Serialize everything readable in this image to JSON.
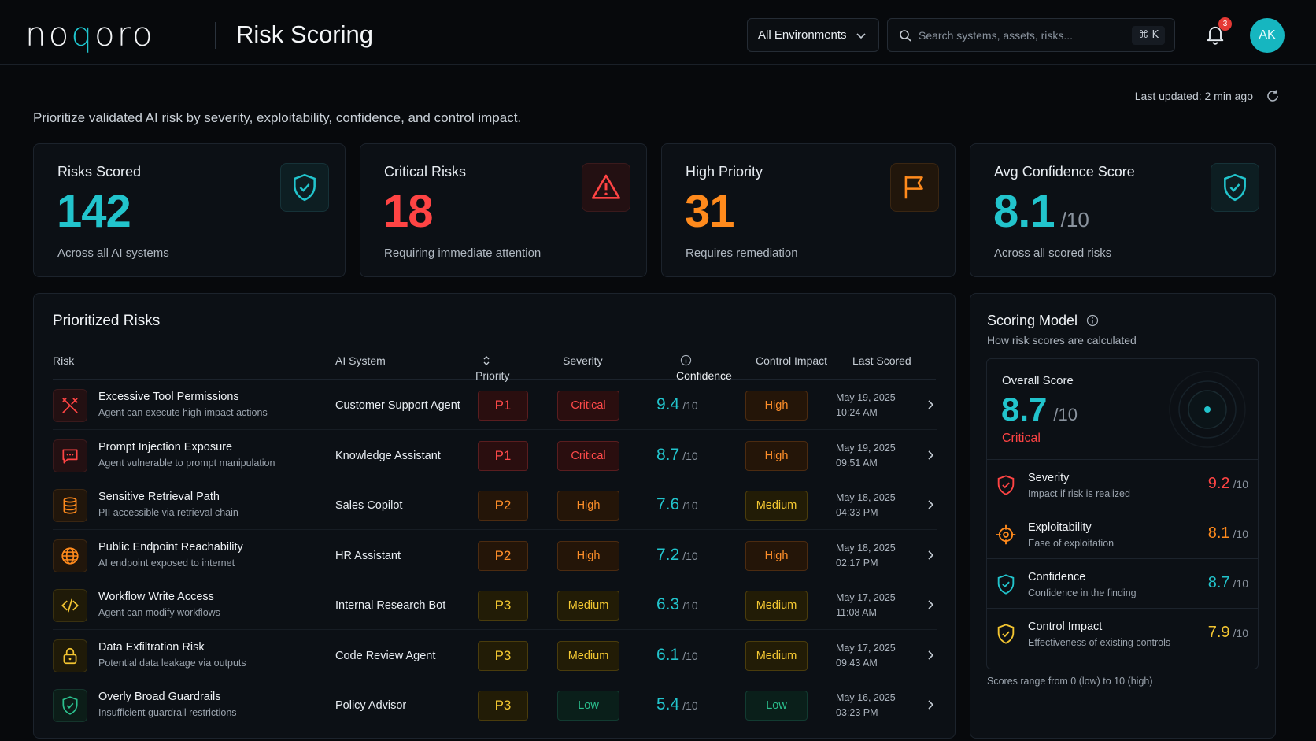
{
  "app": {
    "logo_pre": "no",
    "logo_accent": "q",
    "logo_post": "oro",
    "page_title": "Risk Scoring"
  },
  "header": {
    "environment": "All Environments",
    "search_placeholder": "Search systems, assets, risks...",
    "search_shortcut": "⌘ K",
    "notification_count": "3",
    "avatar_initials": "AK"
  },
  "last_updated": "Last updated: 2 min ago",
  "subtitle": "Prioritize validated AI risk by severity, exploitability, confidence, and control impact.",
  "kpis": [
    {
      "title": "Risks Scored",
      "value": "142",
      "suffix": "",
      "sub": "Across all AI systems",
      "icon": "shield-check-icon",
      "color": "#22c4cc"
    },
    {
      "title": "Critical Risks",
      "value": "18",
      "suffix": "",
      "sub": "Requiring immediate attention",
      "icon": "warning-triangle-icon",
      "color": "#ff4444"
    },
    {
      "title": "High Priority",
      "value": "31",
      "suffix": "",
      "sub": "Requires remediation",
      "icon": "flag-icon",
      "color": "#ff8a1c"
    },
    {
      "title": "Avg Confidence Score",
      "value": "8.1",
      "suffix": "/10",
      "sub": "Across all scored risks",
      "icon": "shield-check-icon",
      "color": "#22c4cc"
    }
  ],
  "risks_panel": {
    "title": "Prioritized Risks",
    "columns": [
      "Risk",
      "AI System",
      "Priority",
      "Severity",
      "Confidence",
      "Control Impact",
      "Last Scored"
    ],
    "rows": [
      {
        "name": "Excessive Tool Permissions",
        "desc": "Agent can execute high-impact actions",
        "system": "Customer Support Agent",
        "priority": "P1",
        "severity": "Critical",
        "confidence": "9.4",
        "of": "/10",
        "control": "High",
        "date": "May 19, 2025",
        "time": "10:24 AM",
        "icon": "tools-icon"
      },
      {
        "name": "Prompt Injection Exposure",
        "desc": "Agent vulnerable to prompt manipulation",
        "system": "Knowledge Assistant",
        "priority": "P1",
        "severity": "Critical",
        "confidence": "8.7",
        "of": "/10",
        "control": "High",
        "date": "May 19, 2025",
        "time": "09:51 AM",
        "icon": "chat-icon"
      },
      {
        "name": "Sensitive Retrieval Path",
        "desc": "PII accessible via retrieval chain",
        "system": "Sales Copilot",
        "priority": "P2",
        "severity": "High",
        "confidence": "7.6",
        "of": "/10",
        "control": "Medium",
        "date": "May 18, 2025",
        "time": "04:33 PM",
        "icon": "database-icon"
      },
      {
        "name": "Public Endpoint Reachability",
        "desc": "AI endpoint exposed to internet",
        "system": "HR Assistant",
        "priority": "P2",
        "severity": "High",
        "confidence": "7.2",
        "of": "/10",
        "control": "High",
        "date": "May 18, 2025",
        "time": "02:17 PM",
        "icon": "globe-icon"
      },
      {
        "name": "Workflow Write Access",
        "desc": "Agent can modify workflows",
        "system": "Internal Research Bot",
        "priority": "P3",
        "severity": "Medium",
        "confidence": "6.3",
        "of": "/10",
        "control": "Medium",
        "date": "May 17, 2025",
        "time": "11:08 AM",
        "icon": "code-icon"
      },
      {
        "name": "Data Exfiltration Risk",
        "desc": "Potential data leakage via outputs",
        "system": "Code Review Agent",
        "priority": "P3",
        "severity": "Medium",
        "confidence": "6.1",
        "of": "/10",
        "control": "Medium",
        "date": "May 17, 2025",
        "time": "09:43 AM",
        "icon": "lock-icon"
      },
      {
        "name": "Overly Broad Guardrails",
        "desc": "Insufficient guardrail restrictions",
        "system": "Policy Advisor",
        "priority": "P3",
        "severity": "Low",
        "confidence": "5.4",
        "of": "/10",
        "control": "Low",
        "date": "May 16, 2025",
        "time": "03:23 PM",
        "icon": "shield-check-icon"
      }
    ]
  },
  "scoring_model": {
    "title": "Scoring Model",
    "subtitle": "How risk scores are calculated",
    "overall_label": "Overall Score",
    "overall_value": "8.7",
    "overall_of": "/10",
    "overall_tag": "Critical",
    "components": [
      {
        "name": "Severity",
        "desc": "Impact if risk is realized",
        "value": "9.2",
        "of": "/10",
        "color": "#ff4444",
        "icon": "shield-alert-icon"
      },
      {
        "name": "Exploitability",
        "desc": "Ease of exploitation",
        "value": "8.1",
        "of": "/10",
        "color": "#ff8a1c",
        "icon": "crosshair-icon"
      },
      {
        "name": "Confidence",
        "desc": "Confidence in the finding",
        "value": "8.7",
        "of": "/10",
        "color": "#22c4cc",
        "icon": "shield-check-icon"
      },
      {
        "name": "Control Impact",
        "desc": "Effectiveness of existing controls",
        "value": "7.9",
        "of": "/10",
        "color": "#f3c531",
        "icon": "shield-check-icon"
      }
    ],
    "footnote": "Scores range from 0 (low) to 10 (high)"
  }
}
